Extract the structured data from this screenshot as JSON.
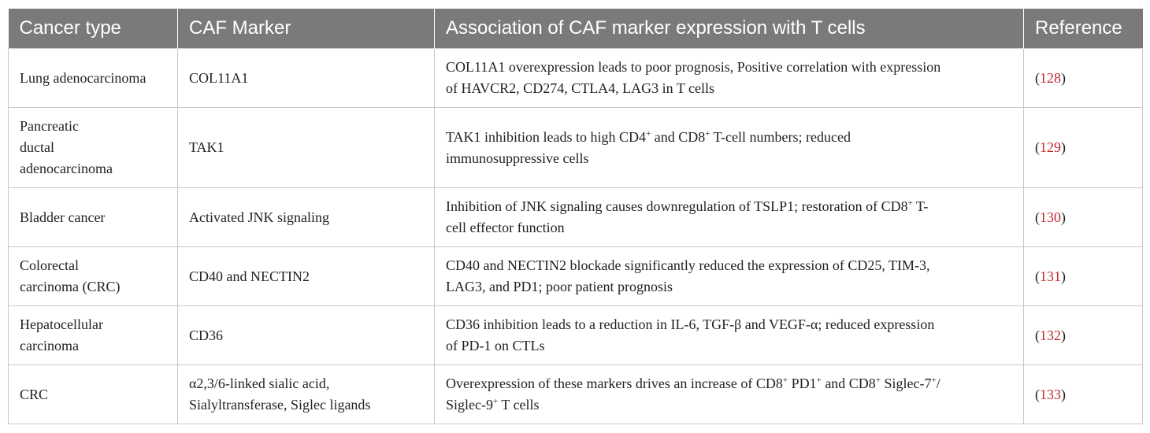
{
  "headers": [
    "Cancer type",
    "CAF Marker",
    "Association of CAF marker expression with T cells",
    "Reference"
  ],
  "rows": [
    {
      "cancer": "Lung adenocarcinoma",
      "marker": "COL11A1",
      "association": "COL11A1 overexpression leads to poor prognosis, Positive correlation with expression of HAVCR2, CD274, CTLA4, LAG3 in T cells",
      "ref": "128"
    },
    {
      "cancer": "Pancreatic\nductal\nadenocarcinoma",
      "marker": "TAK1",
      "association": "TAK1 inhibition leads to high CD4⁺ and CD8⁺ T-cell numbers; reduced immunosuppressive cells",
      "ref": "129"
    },
    {
      "cancer": "Bladder cancer",
      "marker": "Activated JNK signaling",
      "association": "Inhibition of JNK signaling causes downregulation of TSLP1; restoration of CD8⁺ T-cell effector function",
      "ref": "130"
    },
    {
      "cancer": "Colorectal carcinoma (CRC)",
      "marker": "CD40 and NECTIN2",
      "association": "CD40 and NECTIN2 blockade significantly reduced the expression of CD25, TIM-3, LAG3, and PD1; poor patient prognosis",
      "ref": "131"
    },
    {
      "cancer": "Hepatocellular carcinoma",
      "marker": "CD36",
      "association": "CD36 inhibition leads to a reduction in IL-6, TGF-β and VEGF-α; reduced expression of PD-1 on CTLs",
      "ref": "132"
    },
    {
      "cancer": "CRC",
      "marker": "α2,3/6-linked sialic acid, Sialyltransferase, Siglec ligands",
      "association": "Overexpression of these markers drives an increase of CD8⁺ PD1⁺ and CD8⁺ Siglec-7⁺/ Siglec-9⁺ T cells",
      "ref": "133"
    }
  ]
}
